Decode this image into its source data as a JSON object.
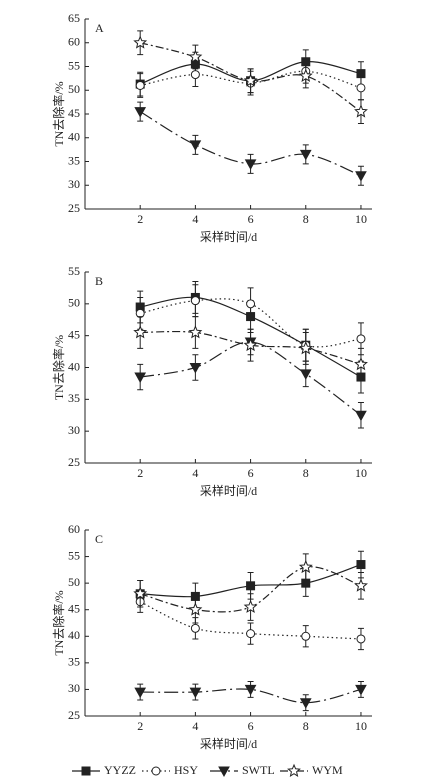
{
  "chart_data": [
    {
      "type": "line",
      "label": "A",
      "xlabel": "采样时间/d",
      "ylabel": "TN去除率/%",
      "xlim": [
        0,
        10.4
      ],
      "xticks": [
        2,
        4,
        6,
        8,
        10
      ],
      "ylim": [
        25,
        65
      ],
      "yticks": [
        25,
        30,
        35,
        40,
        45,
        50,
        55,
        60,
        65
      ],
      "x": [
        2,
        4,
        6,
        8,
        10
      ],
      "series": [
        {
          "name": "YYZZ",
          "marker": "square",
          "dash": "none",
          "color": "#222",
          "values": [
            51.3,
            55.5,
            52,
            56,
            53.5
          ],
          "errors": [
            2.5,
            2.5,
            2.5,
            2.5,
            2.5
          ]
        },
        {
          "name": "HSY",
          "marker": "circle",
          "dash": "1.5 3",
          "color": "#222",
          "values": [
            51,
            53.3,
            51.5,
            54,
            50.5
          ],
          "errors": [
            2.5,
            2.5,
            2.5,
            2.5,
            2.5
          ]
        },
        {
          "name": "SWTL",
          "marker": "triangle-down",
          "dash": "14 4 2 4",
          "color": "#222",
          "values": [
            45.5,
            38.5,
            34.5,
            36.5,
            32
          ],
          "errors": [
            2,
            2,
            2,
            2,
            2
          ]
        },
        {
          "name": "WYM",
          "marker": "star",
          "dash": "8 3 2 3",
          "color": "#222",
          "values": [
            60,
            57,
            52,
            53,
            45.5
          ],
          "errors": [
            2.5,
            2.5,
            2.5,
            2.5,
            2.5
          ]
        }
      ]
    },
    {
      "type": "line",
      "label": "B",
      "xlabel": "采样时间/d",
      "ylabel": "TN去除率/%",
      "xlim": [
        0,
        10.4
      ],
      "xticks": [
        2,
        4,
        6,
        8,
        10
      ],
      "ylim": [
        25,
        55
      ],
      "yticks": [
        25,
        30,
        35,
        40,
        45,
        50,
        55
      ],
      "x": [
        2,
        4,
        6,
        8,
        10
      ],
      "series": [
        {
          "marker": "square",
          "dash": "none",
          "color": "#222",
          "values": [
            49.5,
            51,
            48,
            43.5,
            38.5
          ],
          "errors": [
            2.5,
            2.5,
            2.5,
            2.5,
            2.5
          ]
        },
        {
          "marker": "circle",
          "dash": "1.5 3",
          "color": "#222",
          "values": [
            48.5,
            50.5,
            50,
            43.5,
            44.5
          ],
          "errors": [
            2.5,
            2.5,
            2.5,
            2.5,
            2.5
          ]
        },
        {
          "marker": "triangle-down",
          "dash": "14 4 2 4",
          "color": "#222",
          "values": [
            38.5,
            40,
            44,
            39,
            32.5
          ],
          "errors": [
            2,
            2,
            2,
            2,
            2
          ]
        },
        {
          "marker": "star",
          "dash": "8 3 2 3",
          "color": "#222",
          "values": [
            45.5,
            45.5,
            43.5,
            43,
            40.5
          ],
          "errors": [
            2.5,
            2.5,
            2.5,
            2.5,
            2.5
          ]
        }
      ]
    },
    {
      "type": "line",
      "label": "C",
      "xlabel": "采样时间/d",
      "ylabel": "TN去除率/%",
      "xlim": [
        0,
        10.4
      ],
      "xticks": [
        2,
        4,
        6,
        8,
        10
      ],
      "ylim": [
        25,
        60
      ],
      "yticks": [
        25,
        30,
        35,
        40,
        45,
        50,
        55,
        60
      ],
      "x": [
        2,
        4,
        6,
        8,
        10
      ],
      "series": [
        {
          "marker": "square",
          "dash": "none",
          "color": "#222",
          "values": [
            48,
            47.5,
            49.5,
            50,
            53.5
          ],
          "errors": [
            2.5,
            2.5,
            2.5,
            2.5,
            2.5
          ]
        },
        {
          "marker": "circle",
          "dash": "1.5 3",
          "color": "#222",
          "values": [
            46.5,
            41.5,
            40.5,
            40,
            39.5
          ],
          "errors": [
            2,
            2,
            2,
            2,
            2
          ]
        },
        {
          "marker": "triangle-down",
          "dash": "14 4 2 4",
          "color": "#222",
          "values": [
            29.5,
            29.5,
            30,
            27.5,
            30
          ],
          "errors": [
            1.5,
            1.5,
            1.5,
            1.5,
            1.5
          ]
        },
        {
          "marker": "star",
          "dash": "8 3 2 3",
          "color": "#222",
          "values": [
            48,
            45,
            45.5,
            53,
            49.5
          ],
          "errors": [
            2.5,
            2.5,
            2.5,
            2.5,
            2.5
          ]
        }
      ]
    }
  ]
}
